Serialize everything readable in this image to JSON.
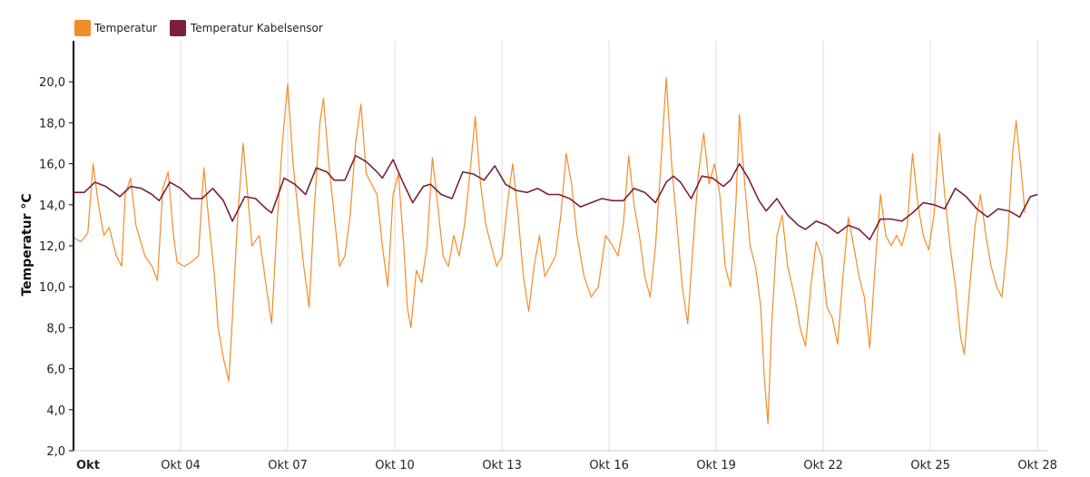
{
  "chart_data": {
    "type": "line",
    "ylabel": "Temperatur °C",
    "xlabel": "",
    "ylim": [
      2,
      22
    ],
    "y_ticks": [
      2,
      4,
      6,
      8,
      10,
      12,
      14,
      16,
      18,
      20
    ],
    "y_tick_labels": [
      "2,0",
      "4,0",
      "6,0",
      "8,0",
      "10,0",
      "12,0",
      "14,0",
      "16,0",
      "18,0",
      "20,0"
    ],
    "xlim": [
      0,
      27.3
    ],
    "x_ticks": [
      0,
      3,
      6,
      9,
      12,
      15,
      18,
      21,
      24,
      27
    ],
    "x_tick_labels": [
      "Okt",
      "Okt 04",
      "Okt 07",
      "Okt 10",
      "Okt 13",
      "Okt 16",
      "Okt 19",
      "Okt 22",
      "Okt 25",
      "Okt 28"
    ],
    "grid": "vertical",
    "legend_position": "top-left",
    "series": [
      {
        "name": "Temperatur",
        "color": "#f28c28",
        "points": [
          [
            0,
            12.4
          ],
          [
            0.2,
            12.2
          ],
          [
            0.4,
            12.6
          ],
          [
            0.55,
            16.0
          ],
          [
            0.7,
            14.0
          ],
          [
            0.85,
            12.5
          ],
          [
            1.0,
            12.9
          ],
          [
            1.2,
            11.5
          ],
          [
            1.35,
            11.0
          ],
          [
            1.45,
            14.5
          ],
          [
            1.6,
            15.3
          ],
          [
            1.75,
            13.0
          ],
          [
            2.0,
            11.5
          ],
          [
            2.2,
            11.0
          ],
          [
            2.35,
            10.3
          ],
          [
            2.5,
            14.8
          ],
          [
            2.65,
            15.6
          ],
          [
            2.8,
            12.5
          ],
          [
            2.9,
            11.2
          ],
          [
            3.1,
            11.0
          ],
          [
            3.3,
            11.2
          ],
          [
            3.5,
            11.5
          ],
          [
            3.65,
            15.8
          ],
          [
            3.8,
            13.0
          ],
          [
            3.95,
            10.5
          ],
          [
            4.05,
            8.0
          ],
          [
            4.2,
            6.5
          ],
          [
            4.35,
            5.4
          ],
          [
            4.45,
            8.5
          ],
          [
            4.6,
            13.5
          ],
          [
            4.75,
            17.0
          ],
          [
            4.9,
            14.0
          ],
          [
            5.0,
            12.0
          ],
          [
            5.2,
            12.5
          ],
          [
            5.4,
            10.0
          ],
          [
            5.55,
            8.2
          ],
          [
            5.7,
            13.0
          ],
          [
            5.85,
            17.0
          ],
          [
            6.0,
            19.9
          ],
          [
            6.15,
            16.0
          ],
          [
            6.3,
            13.5
          ],
          [
            6.45,
            11.0
          ],
          [
            6.6,
            9.0
          ],
          [
            6.75,
            14.0
          ],
          [
            6.9,
            18.0
          ],
          [
            7.0,
            19.2
          ],
          [
            7.15,
            16.0
          ],
          [
            7.3,
            13.5
          ],
          [
            7.45,
            11.0
          ],
          [
            7.6,
            11.5
          ],
          [
            7.75,
            13.5
          ],
          [
            7.9,
            17.0
          ],
          [
            8.05,
            18.9
          ],
          [
            8.2,
            15.5
          ],
          [
            8.35,
            15.0
          ],
          [
            8.5,
            14.5
          ],
          [
            8.65,
            12.0
          ],
          [
            8.8,
            10.0
          ],
          [
            8.95,
            14.5
          ],
          [
            9.1,
            15.5
          ],
          [
            9.25,
            12.0
          ],
          [
            9.35,
            9.0
          ],
          [
            9.45,
            8.0
          ],
          [
            9.6,
            10.8
          ],
          [
            9.75,
            10.2
          ],
          [
            9.9,
            12.0
          ],
          [
            10.05,
            16.3
          ],
          [
            10.2,
            14.0
          ],
          [
            10.35,
            11.5
          ],
          [
            10.5,
            11.0
          ],
          [
            10.65,
            12.5
          ],
          [
            10.8,
            11.5
          ],
          [
            10.95,
            13.0
          ],
          [
            11.1,
            15.5
          ],
          [
            11.25,
            18.3
          ],
          [
            11.4,
            15.0
          ],
          [
            11.55,
            13.0
          ],
          [
            11.7,
            12.0
          ],
          [
            11.85,
            11.0
          ],
          [
            12.0,
            11.5
          ],
          [
            12.15,
            14.0
          ],
          [
            12.3,
            16.0
          ],
          [
            12.45,
            13.5
          ],
          [
            12.6,
            10.5
          ],
          [
            12.75,
            8.8
          ],
          [
            12.9,
            11.0
          ],
          [
            13.05,
            12.5
          ],
          [
            13.2,
            10.5
          ],
          [
            13.35,
            11.0
          ],
          [
            13.5,
            11.5
          ],
          [
            13.65,
            13.5
          ],
          [
            13.8,
            16.5
          ],
          [
            13.95,
            15.0
          ],
          [
            14.1,
            12.5
          ],
          [
            14.3,
            10.5
          ],
          [
            14.5,
            9.5
          ],
          [
            14.7,
            10.0
          ],
          [
            14.9,
            12.5
          ],
          [
            15.1,
            12.0
          ],
          [
            15.25,
            11.5
          ],
          [
            15.4,
            13.0
          ],
          [
            15.55,
            16.4
          ],
          [
            15.7,
            14.0
          ],
          [
            15.85,
            12.5
          ],
          [
            16.0,
            10.5
          ],
          [
            16.15,
            9.5
          ],
          [
            16.3,
            12.0
          ],
          [
            16.45,
            16.0
          ],
          [
            16.6,
            20.2
          ],
          [
            16.75,
            16.0
          ],
          [
            16.9,
            13.0
          ],
          [
            17.05,
            10.0
          ],
          [
            17.2,
            8.2
          ],
          [
            17.35,
            12.0
          ],
          [
            17.5,
            15.5
          ],
          [
            17.65,
            17.5
          ],
          [
            17.8,
            15.0
          ],
          [
            17.95,
            16.0
          ],
          [
            18.1,
            14.5
          ],
          [
            18.25,
            11.0
          ],
          [
            18.4,
            10.0
          ],
          [
            18.55,
            14.0
          ],
          [
            18.65,
            18.4
          ],
          [
            18.8,
            15.0
          ],
          [
            18.95,
            12.0
          ],
          [
            19.1,
            11.0
          ],
          [
            19.25,
            9.0
          ],
          [
            19.35,
            5.5
          ],
          [
            19.45,
            3.3
          ],
          [
            19.55,
            8.0
          ],
          [
            19.7,
            12.5
          ],
          [
            19.85,
            13.5
          ],
          [
            20.0,
            11.0
          ],
          [
            20.2,
            9.5
          ],
          [
            20.35,
            8.0
          ],
          [
            20.5,
            7.1
          ],
          [
            20.65,
            10.0
          ],
          [
            20.8,
            12.2
          ],
          [
            20.95,
            11.5
          ],
          [
            21.1,
            9.0
          ],
          [
            21.25,
            8.5
          ],
          [
            21.4,
            7.2
          ],
          [
            21.55,
            10.5
          ],
          [
            21.7,
            13.4
          ],
          [
            21.85,
            12.0
          ],
          [
            22.0,
            10.5
          ],
          [
            22.15,
            9.5
          ],
          [
            22.3,
            7.0
          ],
          [
            22.45,
            11.0
          ],
          [
            22.6,
            14.5
          ],
          [
            22.75,
            12.5
          ],
          [
            22.9,
            12.0
          ],
          [
            23.05,
            12.5
          ],
          [
            23.2,
            12.0
          ],
          [
            23.35,
            13.0
          ],
          [
            23.5,
            16.5
          ],
          [
            23.65,
            14.0
          ],
          [
            23.8,
            12.5
          ],
          [
            23.95,
            11.8
          ],
          [
            24.1,
            13.5
          ],
          [
            24.25,
            17.5
          ],
          [
            24.4,
            14.5
          ],
          [
            24.55,
            12.0
          ],
          [
            24.7,
            10.0
          ],
          [
            24.85,
            7.5
          ],
          [
            24.95,
            6.7
          ],
          [
            25.1,
            10.0
          ],
          [
            25.25,
            13.0
          ],
          [
            25.4,
            14.5
          ],
          [
            25.55,
            12.5
          ],
          [
            25.7,
            11.0
          ],
          [
            25.85,
            10.0
          ],
          [
            26.0,
            9.5
          ],
          [
            26.15,
            12.0
          ],
          [
            26.3,
            16.5
          ],
          [
            26.4,
            18.1
          ],
          [
            26.55,
            15.5
          ],
          [
            26.65,
            13.6
          ]
        ]
      },
      {
        "name": "Temperatur Kabelsensor",
        "color": "#7b1f3a",
        "points": [
          [
            0,
            14.6
          ],
          [
            0.3,
            14.6
          ],
          [
            0.6,
            15.1
          ],
          [
            0.9,
            14.9
          ],
          [
            1.3,
            14.4
          ],
          [
            1.6,
            14.9
          ],
          [
            1.9,
            14.8
          ],
          [
            2.2,
            14.5
          ],
          [
            2.4,
            14.2
          ],
          [
            2.7,
            15.1
          ],
          [
            3.0,
            14.8
          ],
          [
            3.3,
            14.3
          ],
          [
            3.6,
            14.3
          ],
          [
            3.9,
            14.8
          ],
          [
            4.2,
            14.2
          ],
          [
            4.45,
            13.2
          ],
          [
            4.8,
            14.4
          ],
          [
            5.1,
            14.3
          ],
          [
            5.4,
            13.8
          ],
          [
            5.55,
            13.6
          ],
          [
            5.9,
            15.3
          ],
          [
            6.2,
            15.0
          ],
          [
            6.5,
            14.5
          ],
          [
            6.8,
            15.8
          ],
          [
            7.1,
            15.6
          ],
          [
            7.3,
            15.2
          ],
          [
            7.6,
            15.2
          ],
          [
            7.9,
            16.4
          ],
          [
            8.2,
            16.1
          ],
          [
            8.5,
            15.6
          ],
          [
            8.65,
            15.3
          ],
          [
            8.95,
            16.2
          ],
          [
            9.2,
            15.2
          ],
          [
            9.5,
            14.1
          ],
          [
            9.8,
            14.9
          ],
          [
            10.0,
            15.0
          ],
          [
            10.3,
            14.5
          ],
          [
            10.6,
            14.3
          ],
          [
            10.9,
            15.6
          ],
          [
            11.2,
            15.5
          ],
          [
            11.5,
            15.2
          ],
          [
            11.8,
            15.9
          ],
          [
            12.1,
            15.0
          ],
          [
            12.4,
            14.7
          ],
          [
            12.7,
            14.6
          ],
          [
            13.0,
            14.8
          ],
          [
            13.3,
            14.5
          ],
          [
            13.6,
            14.5
          ],
          [
            13.9,
            14.3
          ],
          [
            14.2,
            13.9
          ],
          [
            14.5,
            14.1
          ],
          [
            14.8,
            14.3
          ],
          [
            15.1,
            14.2
          ],
          [
            15.4,
            14.2
          ],
          [
            15.7,
            14.8
          ],
          [
            16.0,
            14.6
          ],
          [
            16.3,
            14.1
          ],
          [
            16.6,
            15.1
          ],
          [
            16.8,
            15.4
          ],
          [
            17.0,
            15.1
          ],
          [
            17.3,
            14.3
          ],
          [
            17.6,
            15.4
          ],
          [
            17.9,
            15.3
          ],
          [
            18.2,
            14.9
          ],
          [
            18.4,
            15.2
          ],
          [
            18.65,
            16.0
          ],
          [
            18.9,
            15.3
          ],
          [
            19.2,
            14.2
          ],
          [
            19.4,
            13.7
          ],
          [
            19.7,
            14.3
          ],
          [
            20.0,
            13.5
          ],
          [
            20.3,
            13.0
          ],
          [
            20.5,
            12.8
          ],
          [
            20.8,
            13.2
          ],
          [
            21.1,
            13.0
          ],
          [
            21.4,
            12.6
          ],
          [
            21.7,
            13.0
          ],
          [
            22.0,
            12.8
          ],
          [
            22.3,
            12.3
          ],
          [
            22.6,
            13.3
          ],
          [
            22.9,
            13.3
          ],
          [
            23.2,
            13.2
          ],
          [
            23.5,
            13.6
          ],
          [
            23.8,
            14.1
          ],
          [
            24.1,
            14.0
          ],
          [
            24.4,
            13.8
          ],
          [
            24.7,
            14.8
          ],
          [
            25.0,
            14.4
          ],
          [
            25.3,
            13.8
          ],
          [
            25.6,
            13.4
          ],
          [
            25.9,
            13.8
          ],
          [
            26.2,
            13.7
          ],
          [
            26.5,
            13.4
          ],
          [
            26.8,
            14.4
          ],
          [
            27.0,
            14.5
          ]
        ]
      }
    ]
  }
}
